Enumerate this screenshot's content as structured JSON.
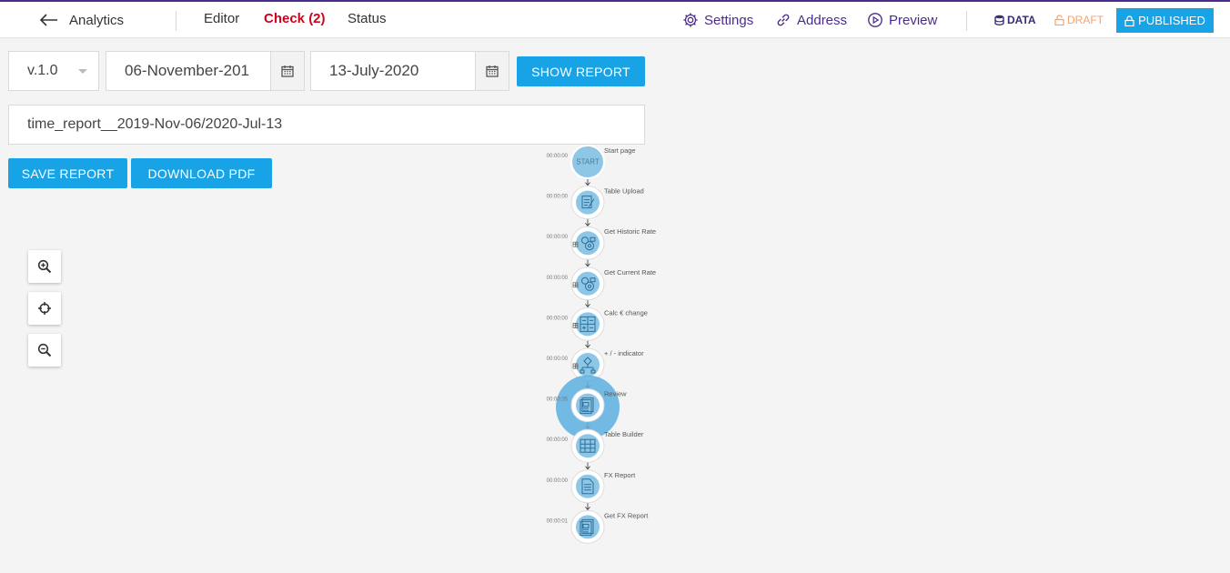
{
  "header": {
    "back_label": "Analytics",
    "tabs": [
      {
        "label": "Editor"
      },
      {
        "label": "Check (2)"
      },
      {
        "label": "Status"
      }
    ],
    "tools": [
      {
        "label": "Settings",
        "icon": "gear-icon"
      },
      {
        "label": "Address",
        "icon": "link-icon"
      },
      {
        "label": "Preview",
        "icon": "play-circle-icon"
      }
    ],
    "data_label": "DATA",
    "draft_label": "DRAFT",
    "published_label": "PUBLISHED"
  },
  "filters": {
    "version": "v.1.0",
    "start_date": "06-November-201",
    "end_date": "13-July-2020",
    "show_report_label": "SHOW REPORT"
  },
  "report": {
    "name": "time_report__2019-Nov-06/2020-Jul-13",
    "save_label": "SAVE REPORT",
    "download_label": "DOWNLOAD PDF"
  },
  "zoom": {
    "zoom_in_icon": "zoom-in-icon",
    "center_icon": "crosshair-icon",
    "zoom_out_icon": "zoom-out-icon"
  },
  "flow": {
    "start_text": "START",
    "nodes": [
      {
        "label": "Start page",
        "time": "00:00:00",
        "icon": "start"
      },
      {
        "label": "Table Upload",
        "time": "00:00:00",
        "icon": "document-edit-icon"
      },
      {
        "label": "Get Historic Rate",
        "time": "00:00:00",
        "icon": "api-gear-icon"
      },
      {
        "label": "Get Current Rate",
        "time": "00:00:00",
        "icon": "api-gear-icon"
      },
      {
        "label": "Calc € change",
        "time": "00:00:00",
        "icon": "calculator-grid-icon"
      },
      {
        "label": "+ / - indicator",
        "time": "00:00:00",
        "icon": "decision-tree-icon"
      },
      {
        "label": "Review",
        "time": "00:00:35",
        "icon": "document-image-icon"
      },
      {
        "label": "Table Builder",
        "time": "00:00:00",
        "icon": "table-grid-icon"
      },
      {
        "label": "FX Report",
        "time": "00:00:00",
        "icon": "document-text-icon"
      },
      {
        "label": "Get FX Report",
        "time": "00:00:01",
        "icon": "document-image-icon"
      }
    ]
  },
  "colors": {
    "accent": "#18a3e6",
    "brand": "#4b2c8a",
    "active_tab": "#d0021b",
    "draft": "#f5a26b",
    "node_fill": "#8ec6e6",
    "highlight": "#5aaee0"
  }
}
